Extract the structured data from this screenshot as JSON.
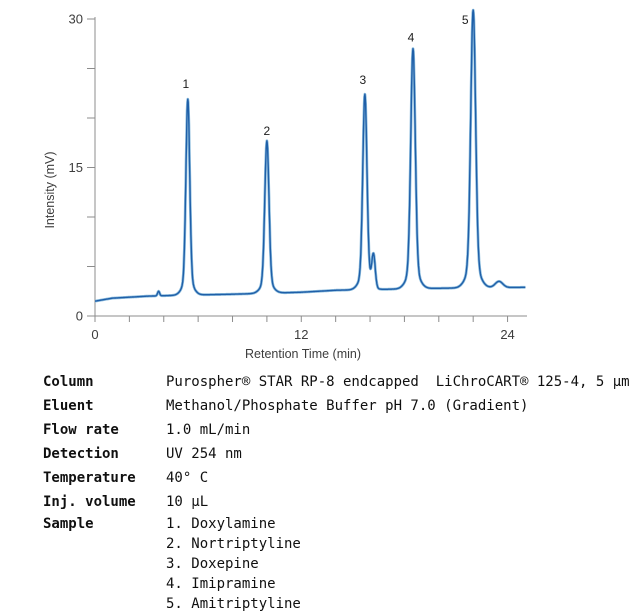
{
  "chart_data": {
    "type": "line",
    "title": "",
    "xlabel": "Retention Time (min)",
    "ylabel": "Intensity (mV)",
    "xlim": [
      0,
      25.1
    ],
    "ylim": [
      0,
      31.6
    ],
    "x_major_ticks": [
      0,
      12,
      24
    ],
    "x_minor_tick_step": 2,
    "y_major_ticks": [
      0,
      15,
      30
    ],
    "y_minor_tick_step": 5,
    "grid": false,
    "legend": false,
    "trace_color": "#1f5fa8",
    "trace_halo_color": "#8fbede",
    "axis_color": "#8c8c8c",
    "text_color": "#3d3d3d",
    "peak_label_color": "#1c1c1c",
    "peaks": [
      {
        "label": "1",
        "compound": "Doxylamine",
        "rt_min": 5.4,
        "apex_mV": 21.9,
        "sigma_min": 0.11,
        "label_dx": -2,
        "label_dy": -11
      },
      {
        "label": "2",
        "compound": "Nortriptyline",
        "rt_min": 10.0,
        "apex_mV": 17.7,
        "sigma_min": 0.12,
        "label_dx": 0,
        "label_dy": -6
      },
      {
        "label": "3",
        "compound": "Doxepine",
        "rt_min": 15.7,
        "apex_mV": 22.4,
        "sigma_min": 0.12,
        "label_dx": -2,
        "label_dy": -10
      },
      {
        "label": "4",
        "compound": "Imipramine",
        "rt_min": 18.5,
        "apex_mV": 27.0,
        "sigma_min": 0.13,
        "label_dx": -2,
        "label_dy": -7
      },
      {
        "label": "5",
        "compound": "Amitriptyline",
        "rt_min": 22.0,
        "apex_mV": 30.9,
        "sigma_min": 0.14,
        "label_dx": -8,
        "label_dy": 14
      }
    ],
    "minor_features": [
      {
        "rt_min": 3.7,
        "apex_mV": 2.5,
        "sigma_min": 0.06
      },
      {
        "rt_min": 16.2,
        "apex_mV": 5.9,
        "sigma_min": 0.1
      },
      {
        "rt_min": 23.5,
        "apex_mV": 3.5,
        "sigma_min": 0.22
      }
    ],
    "baseline_mV": [
      [
        0,
        1.5
      ],
      [
        1,
        1.8
      ],
      [
        3,
        2.0
      ],
      [
        5,
        2.1
      ],
      [
        8,
        2.2
      ],
      [
        12,
        2.4
      ],
      [
        14,
        2.6
      ],
      [
        17,
        2.7
      ],
      [
        20,
        2.8
      ],
      [
        25.05,
        2.9
      ]
    ]
  },
  "conditions": {
    "rows": [
      {
        "label": "Column",
        "value": "Purospher® STAR RP-8 endcapped  LiChroCART® 125-4, 5 µm"
      },
      {
        "label": "Eluent",
        "value": "Methanol/Phosphate Buffer pH 7.0 (Gradient)"
      },
      {
        "label": "Flow rate",
        "value": "1.0 mL/min"
      },
      {
        "label": "Detection",
        "value": "UV 254 nm"
      },
      {
        "label": "Temperature",
        "value": "40° C"
      },
      {
        "label": "Inj. volume",
        "value": "10 µL"
      }
    ],
    "sample_label": "Sample",
    "sample_items": [
      "1. Doxylamine",
      "2. Nortriptyline",
      "3. Doxepine",
      "4. Imipramine",
      "5. Amitriptyline"
    ]
  }
}
